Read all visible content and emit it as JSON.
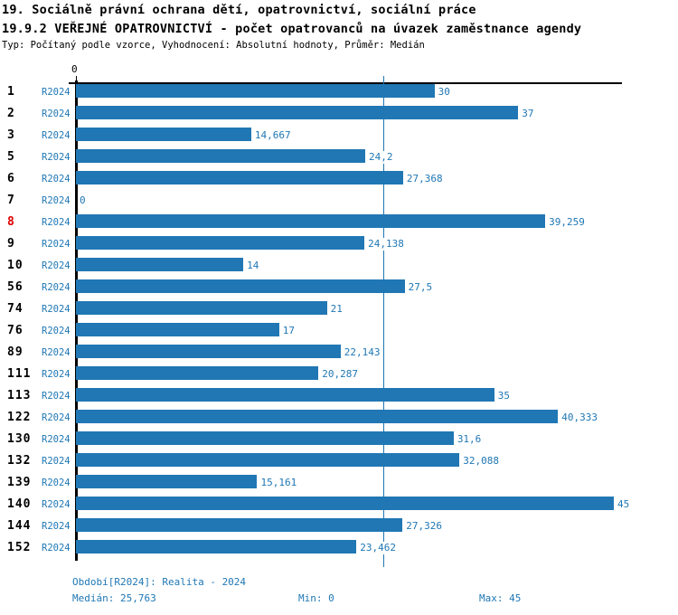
{
  "header": {
    "title_line1": "19. Sociálně právní ochrana dětí, opatrovnictví, sociální práce",
    "title_line2": "19.9.2 VEŘEJNÉ OPATROVNICTVÍ - počet opatrovanců na úvazek zaměstnance agendy",
    "subtitle": "Typ: Počítaný podle vzorce, Vyhodnocení: Absolutní hodnoty, Průměr: Medián"
  },
  "chart_data": {
    "type": "bar",
    "orientation": "horizontal",
    "title": "19.9.2 VEŘEJNÉ OPATROVNICTVÍ - počet opatrovanců na úvazek zaměstnance agendy",
    "xlabel": "",
    "ylabel": "",
    "xlim": [
      0,
      45
    ],
    "x_tick_labels": [
      "0"
    ],
    "grid": false,
    "period_label": "R2024",
    "median_value": 25.763,
    "categories": [
      "1",
      "2",
      "3",
      "5",
      "6",
      "7",
      "8",
      "9",
      "10",
      "56",
      "74",
      "76",
      "89",
      "111",
      "113",
      "122",
      "130",
      "132",
      "139",
      "140",
      "144",
      "152"
    ],
    "values": [
      30,
      37,
      14.667,
      24.2,
      27.368,
      0,
      39.259,
      24.138,
      14,
      27.5,
      21,
      17,
      22.143,
      20.287,
      35,
      40.333,
      31.6,
      32.088,
      15.161,
      45,
      27.326,
      23.462
    ],
    "value_labels": [
      "30",
      "37",
      "14,667",
      "24,2",
      "27,368",
      "0",
      "39,259",
      "24,138",
      "14",
      "27,5",
      "21",
      "17",
      "22,143",
      "20,287",
      "35",
      "40,333",
      "31,6",
      "32,088",
      "15,161",
      "45",
      "27,326",
      "23,462"
    ],
    "highlighted_category": "8",
    "colors": {
      "bar": "#2077b4",
      "median_line": "#1f77b4",
      "period_text": "#1f77b4",
      "value_text": "#1f77b4",
      "footer_text": "#1f77b4",
      "category_text": "#000000",
      "highlight_text": "#dd0000",
      "axis": "#000000"
    },
    "zero_tick_label": "0"
  },
  "footer": {
    "period": "Období[R2024]: Realita - 2024",
    "median": "Medián: 25,763",
    "min": "Min: 0",
    "max": "Max: 45"
  }
}
